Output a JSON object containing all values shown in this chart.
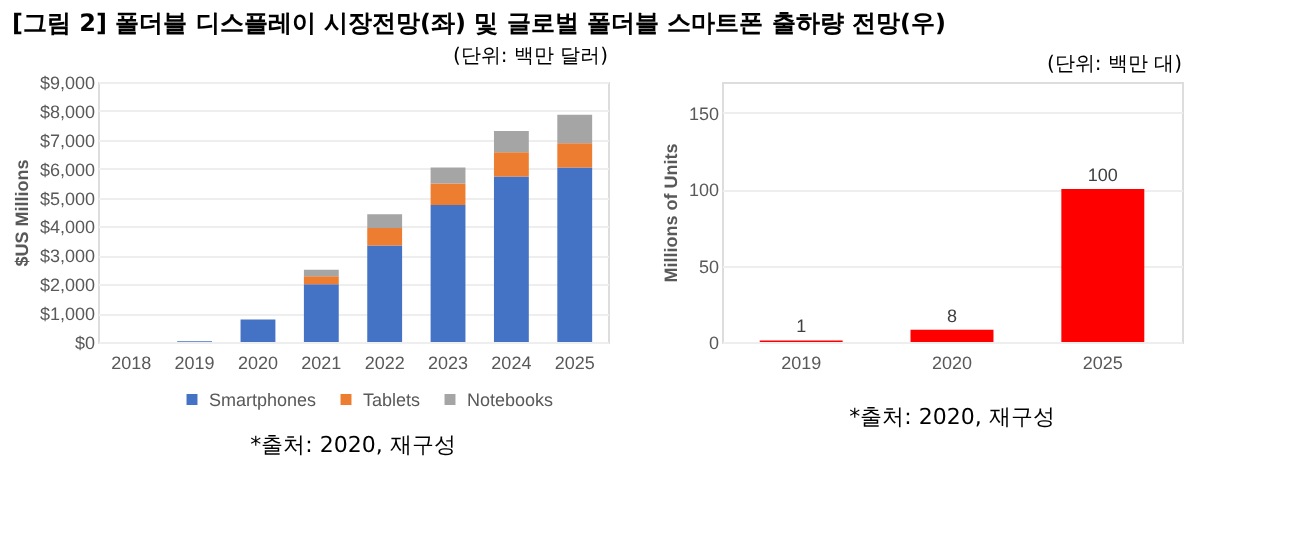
{
  "chart_data": [
    {
      "type": "bar",
      "title": "[그림 2] 폴더블 디스플레이 시장전망(좌) 및 글로벌 폴더블 스마트폰 출하량 전망(우)",
      "subtitle": "(단위: 백만 달러)",
      "ylabel": "$US Millions",
      "stacked": true,
      "categories": [
        "2018",
        "2019",
        "2020",
        "2021",
        "2022",
        "2023",
        "2024",
        "2025"
      ],
      "series": [
        {
          "name": "Smartphones",
          "color": "#4472c4",
          "values": [
            0,
            30,
            780,
            2000,
            3340,
            4740,
            5730,
            6040
          ]
        },
        {
          "name": "Tablets",
          "color": "#ed7d31",
          "values": [
            0,
            0,
            0,
            280,
            610,
            750,
            840,
            840
          ]
        },
        {
          "name": "Notebooks",
          "color": "#a5a5a5",
          "values": [
            0,
            0,
            0,
            220,
            470,
            550,
            730,
            990
          ]
        }
      ],
      "ylim": [
        0,
        9000
      ],
      "yticks": [
        {
          "value": 0,
          "label": "$0"
        },
        {
          "value": 1000,
          "label": "$1,000"
        },
        {
          "value": 2000,
          "label": "$2,000"
        },
        {
          "value": 3000,
          "label": "$3,000"
        },
        {
          "value": 4000,
          "label": "$4,000"
        },
        {
          "value": 5000,
          "label": "$5,000"
        },
        {
          "value": 6000,
          "label": "$6,000"
        },
        {
          "value": 7000,
          "label": "$7,000"
        },
        {
          "value": 8000,
          "label": "$8,000"
        },
        {
          "value": 9000,
          "label": "$9,000"
        }
      ],
      "grid": "y",
      "legend": "bottom",
      "annotations": [
        "*출처: 2020, 재구성"
      ]
    },
    {
      "type": "bar",
      "subtitle": "(단위: 백만 대)",
      "ylabel": "Millions of Units",
      "categories": [
        "2019",
        "2020",
        "2025"
      ],
      "values": [
        1,
        8,
        100
      ],
      "color": "#ff0000",
      "data_labels": true,
      "ylim": [
        0,
        170
      ],
      "yticks": [
        0,
        50,
        100,
        150
      ],
      "grid": "y",
      "annotations": [
        "*출처: 2020, 재구성"
      ]
    }
  ]
}
